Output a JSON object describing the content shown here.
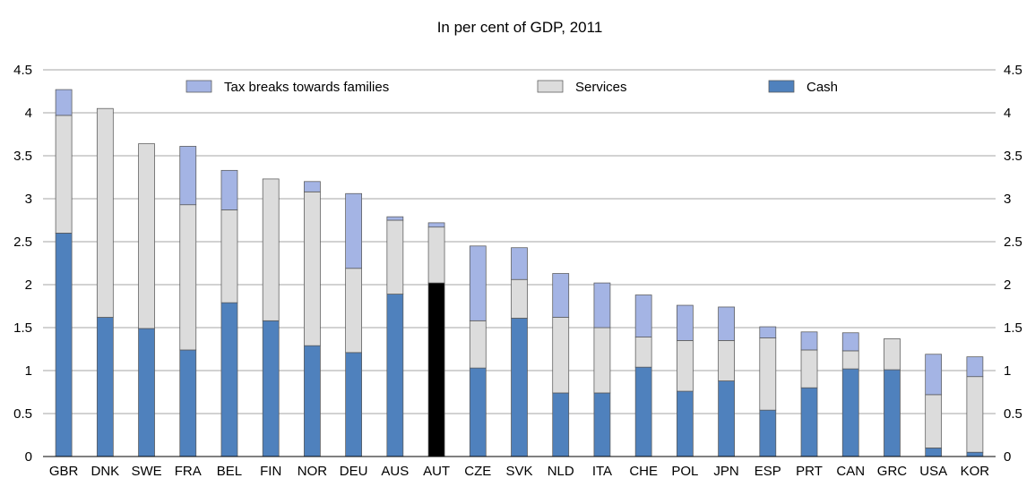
{
  "chart_data": {
    "type": "bar",
    "stacked": true,
    "title": "In per cent of GDP, 2011",
    "xlabel": "",
    "ylabel": "",
    "ylim": [
      0,
      4.5
    ],
    "yticks": [
      "0",
      "0.5",
      "1",
      "1.5",
      "2",
      "2.5",
      "3",
      "3.5",
      "4",
      "4.5"
    ],
    "grid": "horizontal",
    "secondary_y_axis": true,
    "legend_placement": "top",
    "categories": [
      "GBR",
      "DNK",
      "SWE",
      "FRA",
      "BEL",
      "FIN",
      "NOR",
      "DEU",
      "AUS",
      "AUT",
      "CZE",
      "SVK",
      "NLD",
      "ITA",
      "CHE",
      "POL",
      "JPN",
      "ESP",
      "PRT",
      "CAN",
      "GRC",
      "USA",
      "KOR"
    ],
    "highlight_category": "AUT",
    "highlight_color": "#000000",
    "series": [
      {
        "name": "Cash",
        "color": "#4f81bd",
        "values": [
          2.6,
          1.62,
          1.49,
          1.24,
          1.79,
          1.58,
          1.29,
          1.21,
          1.89,
          2.02,
          1.03,
          1.61,
          0.74,
          0.74,
          1.04,
          0.76,
          0.88,
          0.54,
          0.8,
          1.02,
          1.01,
          0.1,
          0.05
        ]
      },
      {
        "name": "Services",
        "color": "#dcdcdc",
        "values": [
          1.37,
          2.43,
          2.15,
          1.69,
          1.08,
          1.65,
          1.79,
          0.98,
          0.86,
          0.65,
          0.55,
          0.45,
          0.88,
          0.76,
          0.35,
          0.59,
          0.47,
          0.84,
          0.44,
          0.21,
          0.36,
          0.62,
          0.88
        ]
      },
      {
        "name": "Tax breaks towards families",
        "color": "#a4b4e4",
        "values": [
          0.3,
          0,
          0,
          0.68,
          0.46,
          0,
          0.12,
          0.87,
          0.04,
          0.05,
          0.87,
          0.37,
          0.51,
          0.52,
          0.49,
          0.41,
          0.39,
          0.13,
          0.21,
          0.21,
          0,
          0.47,
          0.23
        ]
      }
    ],
    "legend": [
      {
        "label": "Tax breaks towards families",
        "color": "#a4b4e4"
      },
      {
        "label": "Services",
        "color": "#dcdcdc"
      },
      {
        "label": "Cash",
        "color": "#4f81bd"
      }
    ]
  }
}
